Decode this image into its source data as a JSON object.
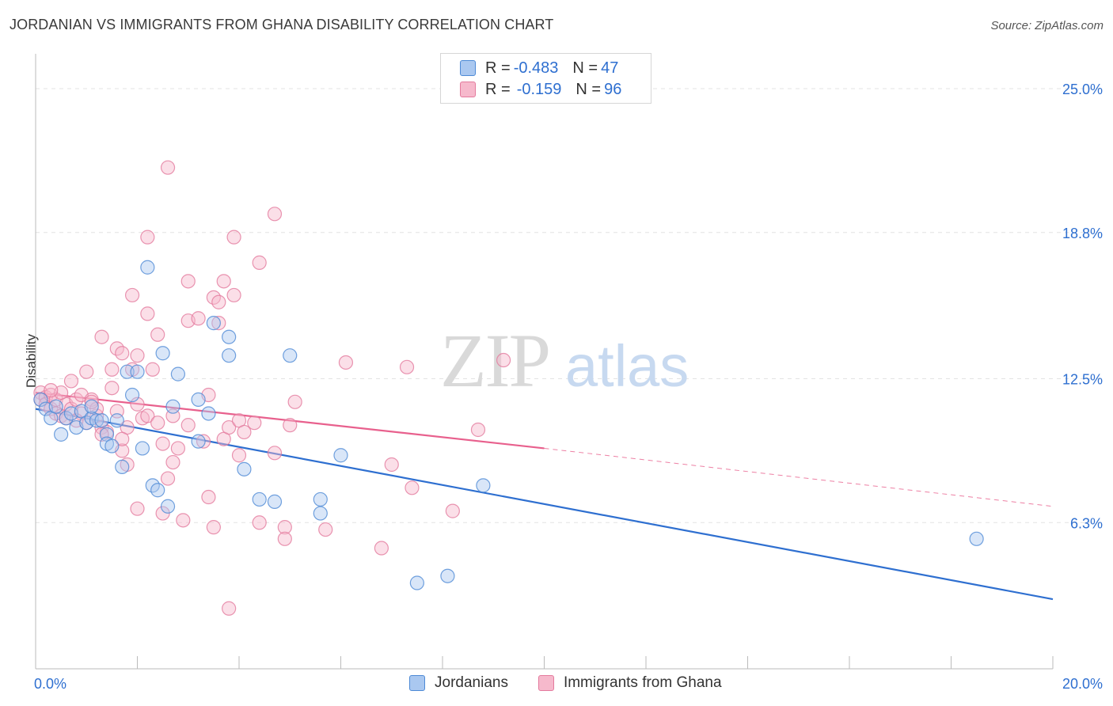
{
  "title": "JORDANIAN VS IMMIGRANTS FROM GHANA DISABILITY CORRELATION CHART",
  "source": "Source: ZipAtlas.com",
  "watermark": {
    "zip": "ZIP",
    "atlas": "atlas"
  },
  "legend": {
    "rows": [
      {
        "r_label": "R = ",
        "r_value": "-0.483",
        "n_label": "N = ",
        "n_value": "47"
      },
      {
        "r_label": "R = ",
        "r_value": "-0.159",
        "n_label": "N = ",
        "n_value": "96"
      }
    ]
  },
  "colors": {
    "blue_fill": "#aac8f0",
    "blue_stroke": "#4d8ad6",
    "blue_line": "#2e6fd0",
    "pink_fill": "#f6b9cc",
    "pink_stroke": "#e47a9d",
    "pink_line": "#e8608d",
    "axis_text": "#2e6fd0",
    "grid": "#e3e3e3"
  },
  "chart_data": {
    "type": "scatter",
    "title": "JORDANIAN VS IMMIGRANTS FROM GHANA DISABILITY CORRELATION CHART",
    "xlabel": "",
    "ylabel": "Disability",
    "xlim": [
      0,
      20
    ],
    "ylim": [
      0,
      26.5
    ],
    "x_tick_labels": [
      "0.0%",
      "20.0%"
    ],
    "y_ticks": [
      6.3,
      12.5,
      18.8,
      25.0
    ],
    "y_tick_labels": [
      "6.3%",
      "12.5%",
      "18.8%",
      "25.0%"
    ],
    "grid": true,
    "legend_position": "bottom",
    "series": [
      {
        "name": "Jordanians",
        "color": "#4d8ad6",
        "r": -0.483,
        "n": 47,
        "trend": {
          "x": [
            0,
            20
          ],
          "y": [
            11.2,
            3.0
          ],
          "dashed_from": null
        },
        "points": [
          [
            0.1,
            11.6
          ],
          [
            0.2,
            11.2
          ],
          [
            0.3,
            10.8
          ],
          [
            0.4,
            11.3
          ],
          [
            0.5,
            10.1
          ],
          [
            0.6,
            10.8
          ],
          [
            0.7,
            11.0
          ],
          [
            0.8,
            10.4
          ],
          [
            0.9,
            11.1
          ],
          [
            1.0,
            10.6
          ],
          [
            1.1,
            10.8
          ],
          [
            1.2,
            10.7
          ],
          [
            1.1,
            11.3
          ],
          [
            1.3,
            10.7
          ],
          [
            1.4,
            10.1
          ],
          [
            1.4,
            9.7
          ],
          [
            1.5,
            9.6
          ],
          [
            1.6,
            10.7
          ],
          [
            1.7,
            8.7
          ],
          [
            1.8,
            12.8
          ],
          [
            1.9,
            11.8
          ],
          [
            2.0,
            12.8
          ],
          [
            2.1,
            9.5
          ],
          [
            2.2,
            17.3
          ],
          [
            2.3,
            7.9
          ],
          [
            2.4,
            7.7
          ],
          [
            2.5,
            13.6
          ],
          [
            2.6,
            7.0
          ],
          [
            2.7,
            11.3
          ],
          [
            2.8,
            12.7
          ],
          [
            3.2,
            11.6
          ],
          [
            3.5,
            14.9
          ],
          [
            3.4,
            11.0
          ],
          [
            3.2,
            9.8
          ],
          [
            3.8,
            14.3
          ],
          [
            3.8,
            13.5
          ],
          [
            4.1,
            8.6
          ],
          [
            4.4,
            7.3
          ],
          [
            4.7,
            7.2
          ],
          [
            5.0,
            13.5
          ],
          [
            5.6,
            6.7
          ],
          [
            5.6,
            7.3
          ],
          [
            6.0,
            9.2
          ],
          [
            7.5,
            3.7
          ],
          [
            8.1,
            4.0
          ],
          [
            8.8,
            7.9
          ],
          [
            18.5,
            5.6
          ]
        ]
      },
      {
        "name": "Immigrants from Ghana",
        "color": "#e47a9d",
        "r": -0.159,
        "n": 96,
        "trend": {
          "x": [
            0,
            10
          ],
          "y": [
            11.9,
            9.5
          ],
          "dashed_to": [
            20,
            7.0
          ]
        },
        "points": [
          [
            0.1,
            11.9
          ],
          [
            0.1,
            11.6
          ],
          [
            0.2,
            11.7
          ],
          [
            0.2,
            11.4
          ],
          [
            0.3,
            11.8
          ],
          [
            0.3,
            11.2
          ],
          [
            0.4,
            11.6
          ],
          [
            0.4,
            11.0
          ],
          [
            0.5,
            10.9
          ],
          [
            0.6,
            11.4
          ],
          [
            0.6,
            10.8
          ],
          [
            0.7,
            12.4
          ],
          [
            0.7,
            11.2
          ],
          [
            0.8,
            11.6
          ],
          [
            0.9,
            11.8
          ],
          [
            0.9,
            11.0
          ],
          [
            1.0,
            10.6
          ],
          [
            1.0,
            12.8
          ],
          [
            1.1,
            11.6
          ],
          [
            1.2,
            10.9
          ],
          [
            1.2,
            11.2
          ],
          [
            1.3,
            14.3
          ],
          [
            1.3,
            10.4
          ],
          [
            1.4,
            10.2
          ],
          [
            1.5,
            12.1
          ],
          [
            1.5,
            12.9
          ],
          [
            1.6,
            13.8
          ],
          [
            1.6,
            11.1
          ],
          [
            1.7,
            9.4
          ],
          [
            1.7,
            13.6
          ],
          [
            1.8,
            10.4
          ],
          [
            1.8,
            8.8
          ],
          [
            1.9,
            16.1
          ],
          [
            1.9,
            12.9
          ],
          [
            2.0,
            13.5
          ],
          [
            2.0,
            11.4
          ],
          [
            2.1,
            10.8
          ],
          [
            2.2,
            10.9
          ],
          [
            2.2,
            15.3
          ],
          [
            2.2,
            18.6
          ],
          [
            2.3,
            12.9
          ],
          [
            2.4,
            14.4
          ],
          [
            2.4,
            10.6
          ],
          [
            2.5,
            6.7
          ],
          [
            2.6,
            21.6
          ],
          [
            2.6,
            8.2
          ],
          [
            2.7,
            8.9
          ],
          [
            2.8,
            9.5
          ],
          [
            2.9,
            6.4
          ],
          [
            3.0,
            10.5
          ],
          [
            3.0,
            16.7
          ],
          [
            3.0,
            15.0
          ],
          [
            3.2,
            15.1
          ],
          [
            3.3,
            9.8
          ],
          [
            3.4,
            11.8
          ],
          [
            3.4,
            7.4
          ],
          [
            3.5,
            6.1
          ],
          [
            3.5,
            16.0
          ],
          [
            3.6,
            15.8
          ],
          [
            3.6,
            14.9
          ],
          [
            3.7,
            16.7
          ],
          [
            3.7,
            9.9
          ],
          [
            3.8,
            10.4
          ],
          [
            3.9,
            16.1
          ],
          [
            3.9,
            18.6
          ],
          [
            4.0,
            10.7
          ],
          [
            4.1,
            10.2
          ],
          [
            4.0,
            9.2
          ],
          [
            4.3,
            10.6
          ],
          [
            4.4,
            6.3
          ],
          [
            4.4,
            17.5
          ],
          [
            4.7,
            19.6
          ],
          [
            4.7,
            9.3
          ],
          [
            4.9,
            6.1
          ],
          [
            4.9,
            5.6
          ],
          [
            5.0,
            10.5
          ],
          [
            5.1,
            11.5
          ],
          [
            5.7,
            6.0
          ],
          [
            6.1,
            13.2
          ],
          [
            6.8,
            5.2
          ],
          [
            7.0,
            8.8
          ],
          [
            7.3,
            13.0
          ],
          [
            7.4,
            7.8
          ],
          [
            8.2,
            6.8
          ],
          [
            8.7,
            10.3
          ],
          [
            9.2,
            13.3
          ],
          [
            1.3,
            10.1
          ],
          [
            0.5,
            11.9
          ],
          [
            3.8,
            2.6
          ],
          [
            2.0,
            6.9
          ],
          [
            2.7,
            10.9
          ],
          [
            1.7,
            9.9
          ],
          [
            0.3,
            12.0
          ],
          [
            1.1,
            11.5
          ],
          [
            2.5,
            9.7
          ],
          [
            0.8,
            10.7
          ]
        ]
      }
    ]
  },
  "bottom_legend": [
    "Jordanians",
    "Immigrants from Ghana"
  ]
}
